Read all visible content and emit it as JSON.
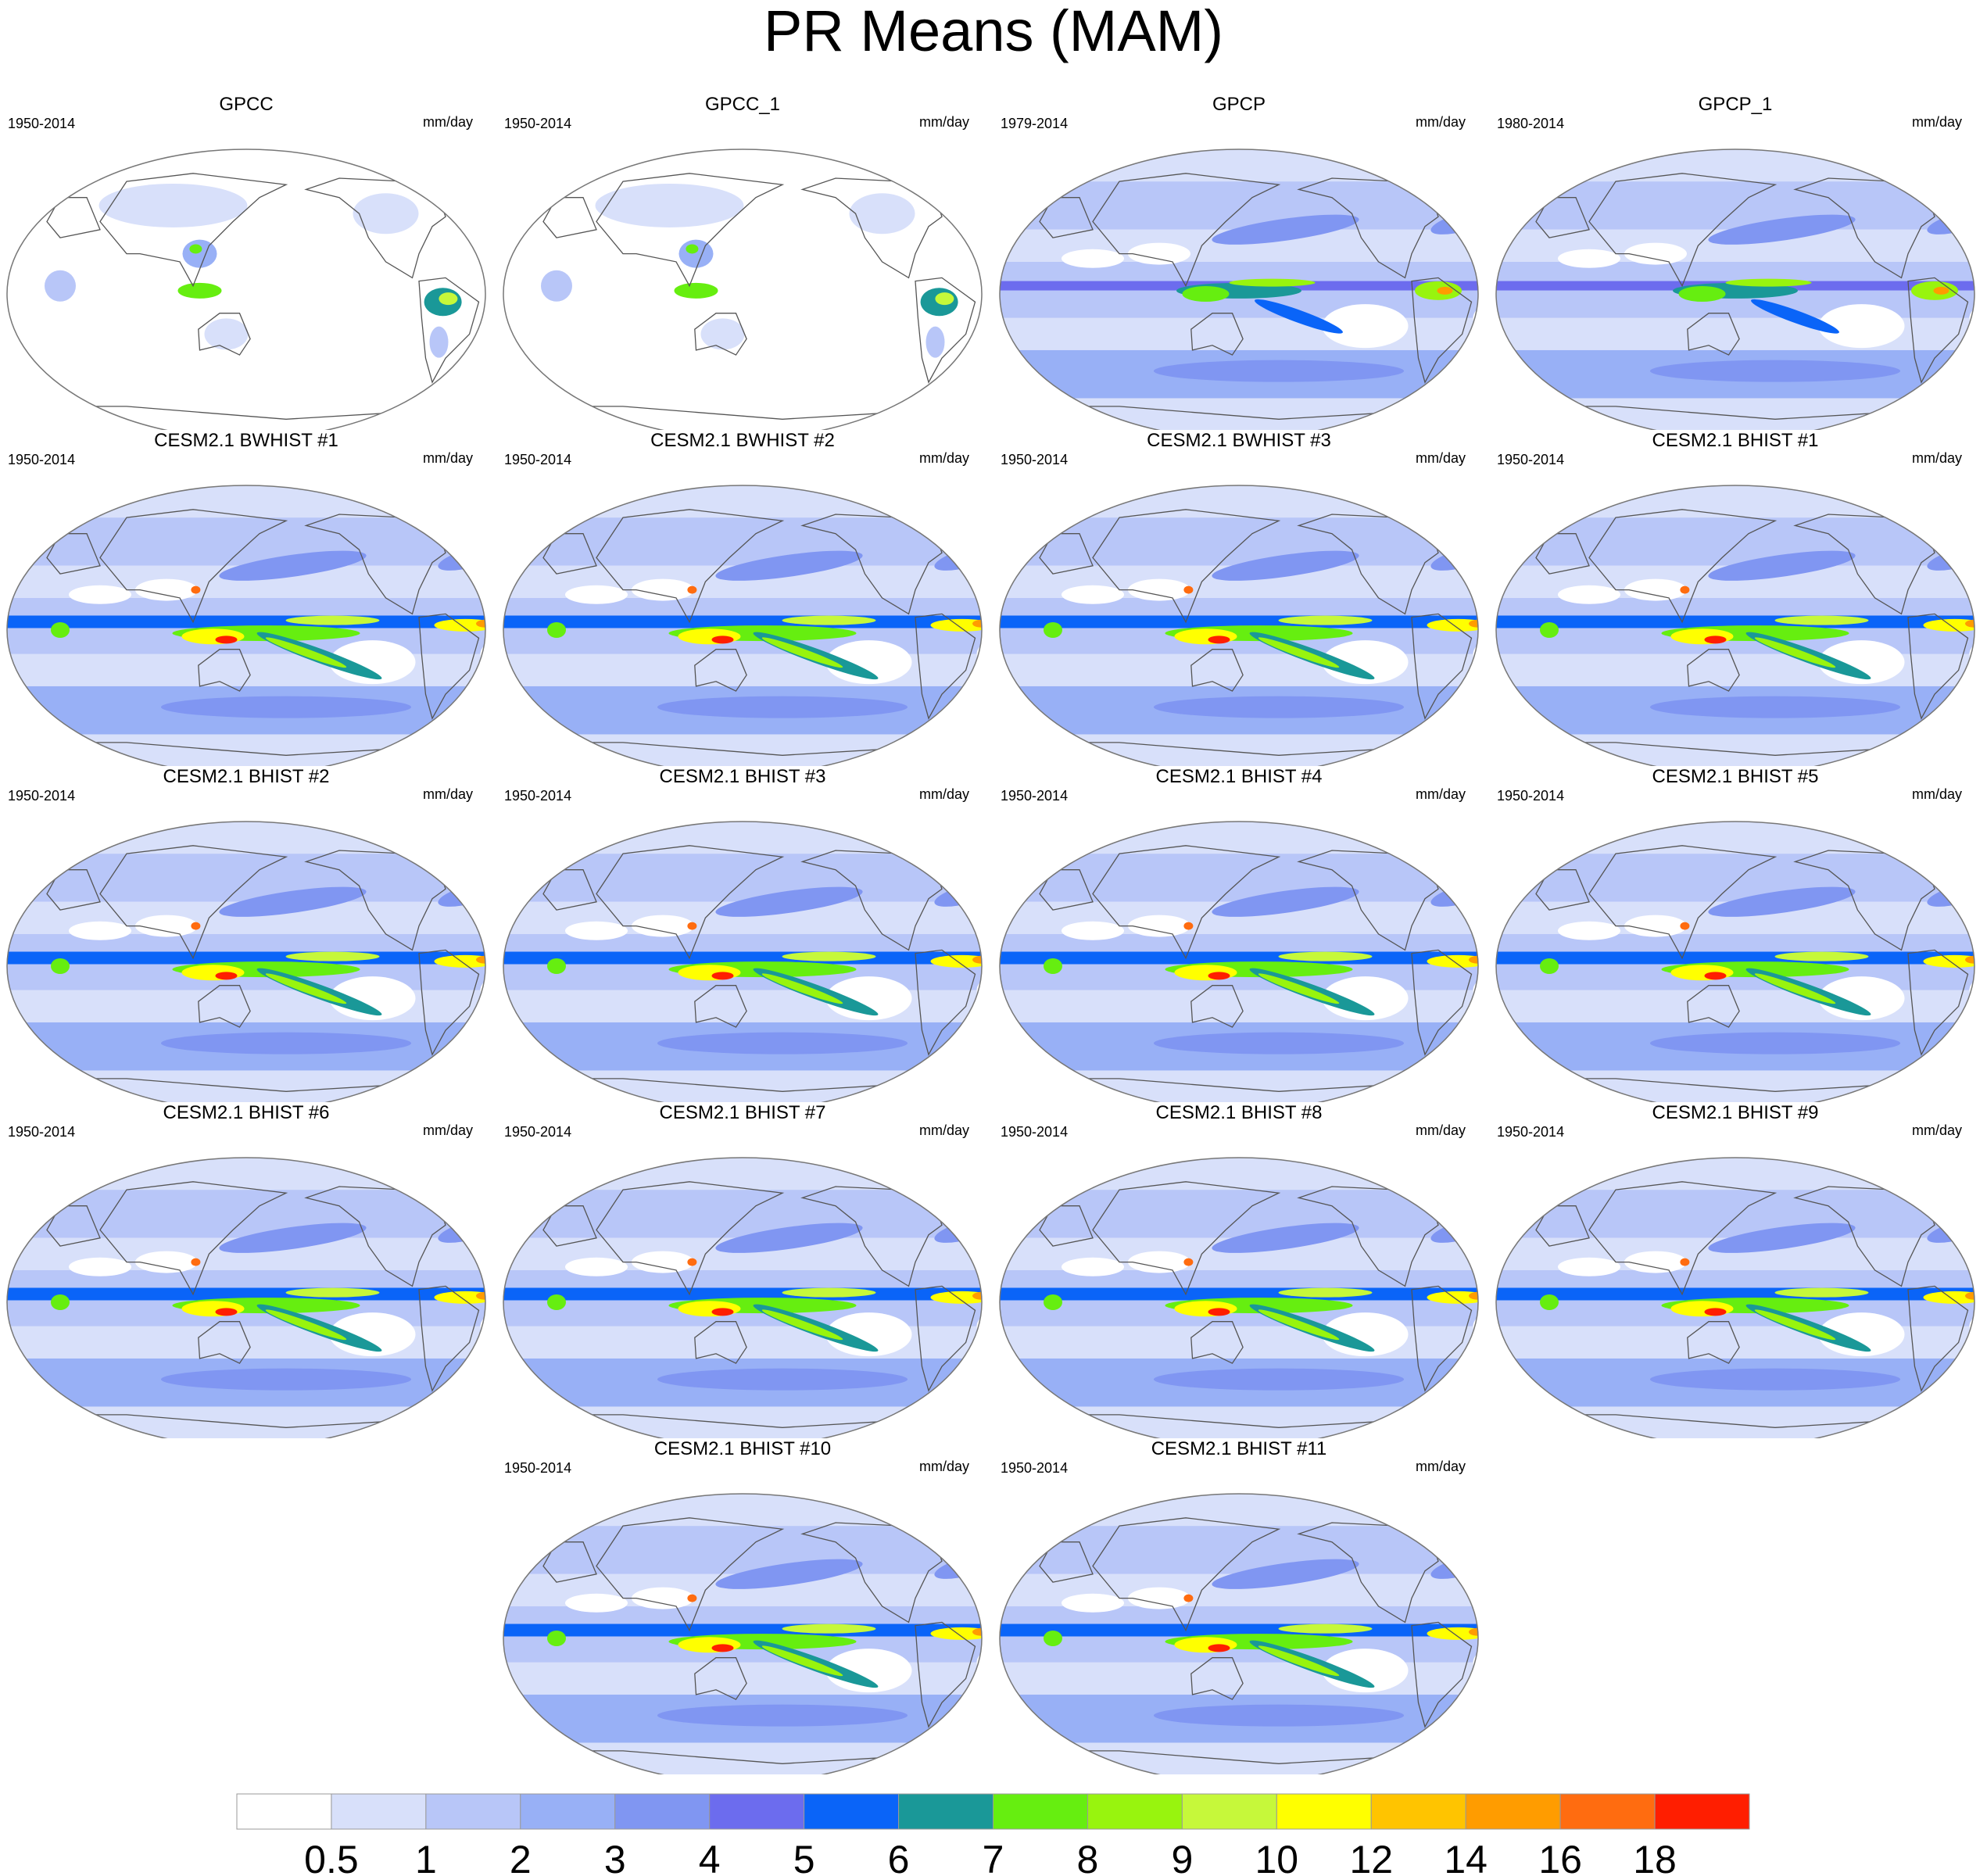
{
  "title": "PR Means (MAM)",
  "units": "mm/day",
  "chart_data": {
    "type": "heatmap",
    "title": "PR Means (MAM)",
    "variable": "PR",
    "season": "MAM",
    "projection": "Robinson (Pacific-centered)",
    "panels": [
      {
        "name": "GPCC",
        "period": "1950-2014",
        "units": "mm/day",
        "ocean_data": false
      },
      {
        "name": "GPCC_1",
        "period": "1950-2014",
        "units": "mm/day",
        "ocean_data": false
      },
      {
        "name": "GPCP",
        "period": "1979-2014",
        "units": "mm/day",
        "ocean_data": true
      },
      {
        "name": "GPCP_1",
        "period": "1980-2014",
        "units": "mm/day",
        "ocean_data": true
      },
      {
        "name": "CESM2.1 BWHIST #1",
        "period": "1950-2014",
        "units": "mm/day",
        "ocean_data": true
      },
      {
        "name": "CESM2.1 BWHIST #2",
        "period": "1950-2014",
        "units": "mm/day",
        "ocean_data": true
      },
      {
        "name": "CESM2.1 BWHIST #3",
        "period": "1950-2014",
        "units": "mm/day",
        "ocean_data": true
      },
      {
        "name": "CESM2.1 BHIST #1",
        "period": "1950-2014",
        "units": "mm/day",
        "ocean_data": true
      },
      {
        "name": "CESM2.1 BHIST #2",
        "period": "1950-2014",
        "units": "mm/day",
        "ocean_data": true
      },
      {
        "name": "CESM2.1 BHIST #3",
        "period": "1950-2014",
        "units": "mm/day",
        "ocean_data": true
      },
      {
        "name": "CESM2.1 BHIST #4",
        "period": "1950-2014",
        "units": "mm/day",
        "ocean_data": true
      },
      {
        "name": "CESM2.1 BHIST #5",
        "period": "1950-2014",
        "units": "mm/day",
        "ocean_data": true
      },
      {
        "name": "CESM2.1 BHIST #6",
        "period": "1950-2014",
        "units": "mm/day",
        "ocean_data": true
      },
      {
        "name": "CESM2.1 BHIST #7",
        "period": "1950-2014",
        "units": "mm/day",
        "ocean_data": true
      },
      {
        "name": "CESM2.1 BHIST #8",
        "period": "1950-2014",
        "units": "mm/day",
        "ocean_data": true
      },
      {
        "name": "CESM2.1 BHIST #9",
        "period": "1950-2014",
        "units": "mm/day",
        "ocean_data": true
      },
      {
        "name": "CESM2.1 BHIST #10",
        "period": "1950-2014",
        "units": "mm/day",
        "ocean_data": true
      },
      {
        "name": "CESM2.1 BHIST #11",
        "period": "1950-2014",
        "units": "mm/day",
        "ocean_data": true
      }
    ],
    "colorbar": {
      "labels": [
        "0.5",
        "1",
        "2",
        "3",
        "4",
        "5",
        "6",
        "7",
        "8",
        "9",
        "10",
        "12",
        "14",
        "16",
        "18"
      ],
      "colors": [
        "#ffffff",
        "#d8e0fa",
        "#b8c6f8",
        "#98b0f6",
        "#8096f2",
        "#6c6cee",
        "#0a64f8",
        "#1a9898",
        "#66ee10",
        "#98f40e",
        "#c6f83a",
        "#ffff00",
        "#ffc400",
        "#ff9c00",
        "#ff6c10",
        "#ff1e00"
      ]
    }
  }
}
